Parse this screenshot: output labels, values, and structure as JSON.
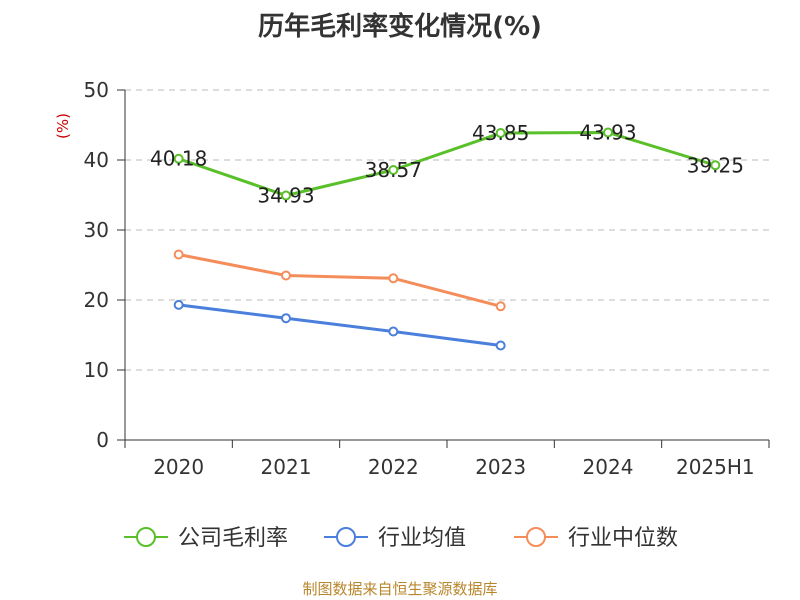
{
  "chart_data": {
    "type": "line",
    "title": "历年毛利率变化情况(%)",
    "ylabel": "(%)",
    "xlabel": "",
    "ylim": [
      0,
      50
    ],
    "y_ticks": [
      "0",
      "10",
      "20",
      "30",
      "40",
      "50"
    ],
    "categories": [
      "2020",
      "2021",
      "2022",
      "2023",
      "2024",
      "2025H1"
    ],
    "grid": true,
    "legend_position": "bottom",
    "series": [
      {
        "name": "公司毛利率",
        "color": "#5ac02a",
        "values": [
          40.18,
          34.93,
          38.57,
          43.85,
          43.93,
          39.25
        ],
        "data_labels": [
          "40.18",
          "34.93",
          "38.57",
          "43.85",
          "43.93",
          "39.25"
        ]
      },
      {
        "name": "行业均值",
        "color": "#4a7fdb",
        "values": [
          19.3,
          17.4,
          15.5,
          13.5,
          null,
          null
        ]
      },
      {
        "name": "行业中位数",
        "color": "#f58d5a",
        "values": [
          26.5,
          23.5,
          23.1,
          19.1,
          null,
          null
        ]
      }
    ]
  },
  "source": "制图数据来自恒生聚源数据库"
}
